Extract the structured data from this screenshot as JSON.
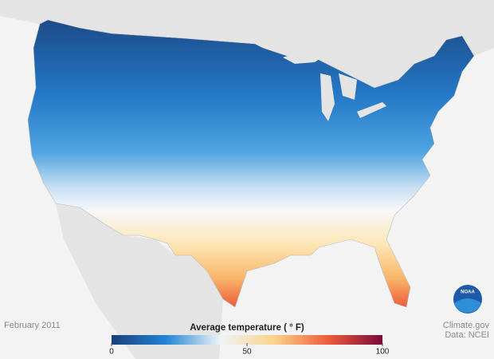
{
  "logo": "NOAA",
  "footer": {
    "date": "February 2011",
    "source": "Climate.gov",
    "credit": "Data: NCEI"
  },
  "legend": {
    "title": "Average temperature ( ° F)",
    "range": [
      0,
      100
    ],
    "ticks": [
      0,
      50,
      100
    ],
    "colors": [
      "#1a3f7a",
      "#2383d4",
      "#eef3f8",
      "#fbd38c",
      "#ef5a3c",
      "#7a0a3a"
    ]
  }
}
